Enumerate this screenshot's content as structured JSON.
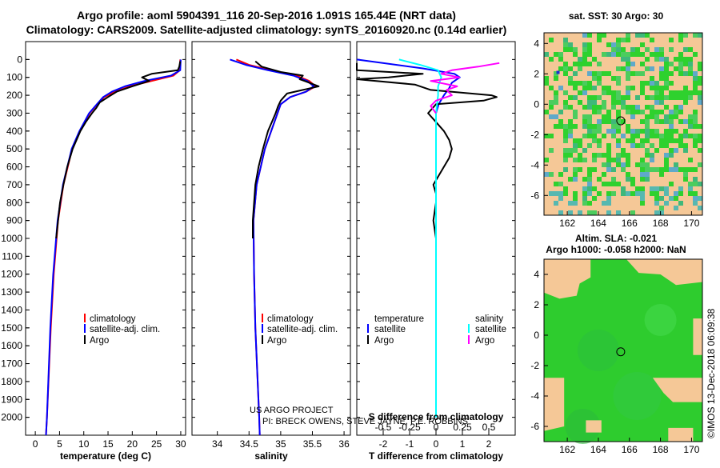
{
  "titles": {
    "line1": "Argo profile: aoml 5904391_116 20-Sep-2016 1.091S 165.44E (NRT data)",
    "line2": "Climatology: CARS2009. Satellite-adjusted climatology: synTS_20160920.nc (0.14d earlier)"
  },
  "credit": {
    "line1": "US ARGO PROJECT",
    "line2": "PI: BRECK OWENS, STEVE JAYNE, P.E. ROBBINS"
  },
  "depth_ticks": [
    "0",
    "100",
    "200",
    "300",
    "400",
    "500",
    "600",
    "700",
    "800",
    "900",
    "1000",
    "1100",
    "1200",
    "1300",
    "1400",
    "1500",
    "1600",
    "1700",
    "1800",
    "1900",
    "2000"
  ],
  "colors": {
    "clim": "#ff0000",
    "sat": "#0000ff",
    "argo": "#000000",
    "sat_s": "#00ffff",
    "argo_s": "#ff00ff",
    "land": "#f5c897",
    "ocean": "#2ecc2e"
  },
  "chart_data": [
    {
      "type": "line",
      "title": "",
      "xlabel": "temperature (deg C)",
      "ylabel": "",
      "xlim": [
        -2,
        31
      ],
      "ylim": [
        2100,
        0
      ],
      "x_ticks": [
        "0",
        "5",
        "10",
        "15",
        "20",
        "25",
        "30"
      ],
      "legend": [
        "climatology",
        "satellite-adj. clim.",
        "Argo"
      ],
      "series": [
        {
          "name": "climatology",
          "depth": [
            0,
            60,
            90,
            120,
            150,
            180,
            210,
            250,
            300,
            400,
            500,
            700,
            900,
            1200,
            1500,
            2000,
            2100
          ],
          "values": [
            29.9,
            29.8,
            28.5,
            24,
            19.5,
            16.5,
            14.2,
            12.8,
            11.2,
            9.2,
            7.6,
            5.8,
            4.7,
            3.8,
            3.2,
            2.4,
            2.2
          ]
        },
        {
          "name": "satellite-adj. clim.",
          "depth": [
            0,
            60,
            90,
            120,
            150,
            180,
            210,
            250,
            300,
            400,
            500,
            700,
            900,
            1200,
            1500,
            2000,
            2100
          ],
          "values": [
            30,
            29.9,
            28,
            22.5,
            18.5,
            15.8,
            14,
            12.7,
            11.1,
            9.1,
            7.5,
            5.7,
            4.6,
            3.7,
            3.1,
            2.4,
            2.2
          ]
        },
        {
          "name": "Argo",
          "depth": [
            10,
            40,
            60,
            80,
            100,
            120,
            150,
            180,
            210,
            240,
            270,
            300,
            350,
            400,
            500,
            600,
            700,
            800,
            900,
            1000
          ],
          "values": [
            29.9,
            29.7,
            29.4,
            24,
            22,
            23.5,
            20,
            16.8,
            15,
            13.3,
            12.6,
            11.7,
            10.4,
            9.3,
            7.7,
            6.6,
            5.8,
            5.1,
            4.7,
            4.3
          ]
        }
      ]
    },
    {
      "type": "line",
      "title": "",
      "xlabel": "salinity",
      "ylabel": "",
      "xlim": [
        33.6,
        36.1
      ],
      "ylim": [
        2100,
        0
      ],
      "x_ticks": [
        "34",
        "34.5",
        "35",
        "35.5",
        "36"
      ],
      "legend": [
        "climatology",
        "satellite-adj. clim.",
        "Argo"
      ],
      "series": [
        {
          "name": "climatology",
          "depth": [
            0,
            30,
            60,
            90,
            120,
            150,
            180,
            210,
            250,
            300,
            400,
            500,
            700,
            900,
            1200,
            1500,
            2000,
            2100
          ],
          "values": [
            34.3,
            34.5,
            34.85,
            35.25,
            35.45,
            35.55,
            35.4,
            35.15,
            35.0,
            34.95,
            34.85,
            34.75,
            34.62,
            34.57,
            34.58,
            34.6,
            34.66,
            34.67
          ]
        },
        {
          "name": "satellite-adj. clim.",
          "depth": [
            0,
            30,
            60,
            90,
            120,
            150,
            180,
            210,
            250,
            300,
            400,
            500,
            700,
            900,
            1200,
            1500,
            2000,
            2100
          ],
          "values": [
            34.2,
            34.45,
            34.8,
            35.2,
            35.42,
            35.52,
            35.4,
            35.15,
            35.0,
            34.95,
            34.85,
            34.75,
            34.62,
            34.57,
            34.58,
            34.6,
            34.66,
            34.67
          ]
        },
        {
          "name": "Argo",
          "depth": [
            10,
            40,
            70,
            90,
            110,
            130,
            150,
            170,
            190,
            210,
            230,
            260,
            300,
            350,
            400,
            500,
            600,
            700,
            800,
            900,
            1000
          ],
          "values": [
            34.6,
            34.7,
            35.0,
            35.35,
            35.3,
            35.45,
            35.6,
            35.35,
            35.1,
            35.05,
            35.0,
            34.96,
            34.92,
            34.86,
            34.8,
            34.72,
            34.65,
            34.6,
            34.58,
            34.56,
            34.56
          ]
        }
      ]
    },
    {
      "type": "line",
      "title": "S difference from climatology",
      "xlabel": "T difference from climatology",
      "ylabel": "",
      "xlim": [
        -3,
        3
      ],
      "ylim": [
        2100,
        0
      ],
      "x_ticks": [
        "-2",
        "-1",
        "0",
        "1",
        "2"
      ],
      "top_xlim": [
        -0.75,
        0.75
      ],
      "top_ticks": [
        "-0.5",
        "-0.25",
        "0",
        "0.25",
        "0.5"
      ],
      "legend": [
        "temperature",
        "satellite",
        "Argo",
        "salinity",
        "satellite",
        "Argo"
      ],
      "series": [
        {
          "name": "temperature satellite",
          "depth": [
            0,
            50,
            80,
            100,
            130,
            160,
            200,
            250,
            300,
            400,
            600,
            1000,
            2000
          ],
          "values": [
            -3,
            -0.5,
            0.7,
            0.9,
            0.6,
            0.5,
            0.3,
            0.1,
            0.0,
            0.0,
            0.0,
            0.0,
            0.0
          ]
        },
        {
          "name": "temperature Argo",
          "depth": [
            20,
            60,
            80,
            100,
            110,
            140,
            170,
            200,
            210,
            230,
            250,
            300,
            350,
            400,
            450,
            500,
            550,
            600,
            700,
            750,
            800,
            900,
            1000
          ],
          "values": [
            -3,
            -3,
            -0.5,
            -1.8,
            -3,
            -0.8,
            -0.2,
            2.1,
            2.3,
            1.8,
            0.0,
            -0.3,
            0.0,
            0.3,
            0.5,
            0.6,
            0.5,
            0.3,
            -0.1,
            0.0,
            0.0,
            -0.1,
            0.0
          ]
        },
        {
          "name": "salinity satellite",
          "depth": [
            0,
            30,
            60,
            100,
            150,
            200,
            300,
            400,
            600,
            1000,
            2000
          ],
          "values": [
            -0.35,
            -0.15,
            0.02,
            0.05,
            0.02,
            0.02,
            0.0,
            0.0,
            0.0,
            0.0,
            0.0
          ]
        },
        {
          "name": "salinity Argo",
          "depth": [
            20,
            40,
            60,
            80,
            100,
            120,
            150,
            170,
            200,
            230,
            260,
            300
          ],
          "values": [
            0.6,
            0.4,
            0.15,
            0.05,
            0.22,
            -0.05,
            0.2,
            0.1,
            0.15,
            0.0,
            -0.05,
            0.0
          ]
        }
      ]
    },
    {
      "type": "heatmap",
      "title": "sat. SST: 30 Argo: 30",
      "xlabel": "",
      "ylabel": "",
      "xlim": [
        160.5,
        170.7
      ],
      "ylim": [
        -7.3,
        4.7
      ],
      "x_ticks": [
        "162",
        "164",
        "166",
        "168",
        "170"
      ],
      "y_ticks": [
        "4",
        "2",
        "0",
        "-2",
        "-4",
        "-6"
      ],
      "marker": {
        "lon": 165.44,
        "lat": -1.091
      }
    },
    {
      "type": "heatmap",
      "title": "Altim. SLA: -0.021",
      "subtitle": "Argo h1000: -0.058 h2000: NaN",
      "xlabel": "",
      "ylabel": "",
      "xlim": [
        160.5,
        170.7
      ],
      "ylim": [
        -7.0,
        5.0
      ],
      "x_ticks": [
        "162",
        "164",
        "166",
        "168",
        "170"
      ],
      "y_ticks": [
        "4",
        "2",
        "0",
        "-2",
        "-4",
        "-6"
      ],
      "marker": {
        "lon": 165.44,
        "lat": -1.091
      }
    }
  ],
  "stamp": "©IMOS 13-Dec-2018 06:09:38"
}
